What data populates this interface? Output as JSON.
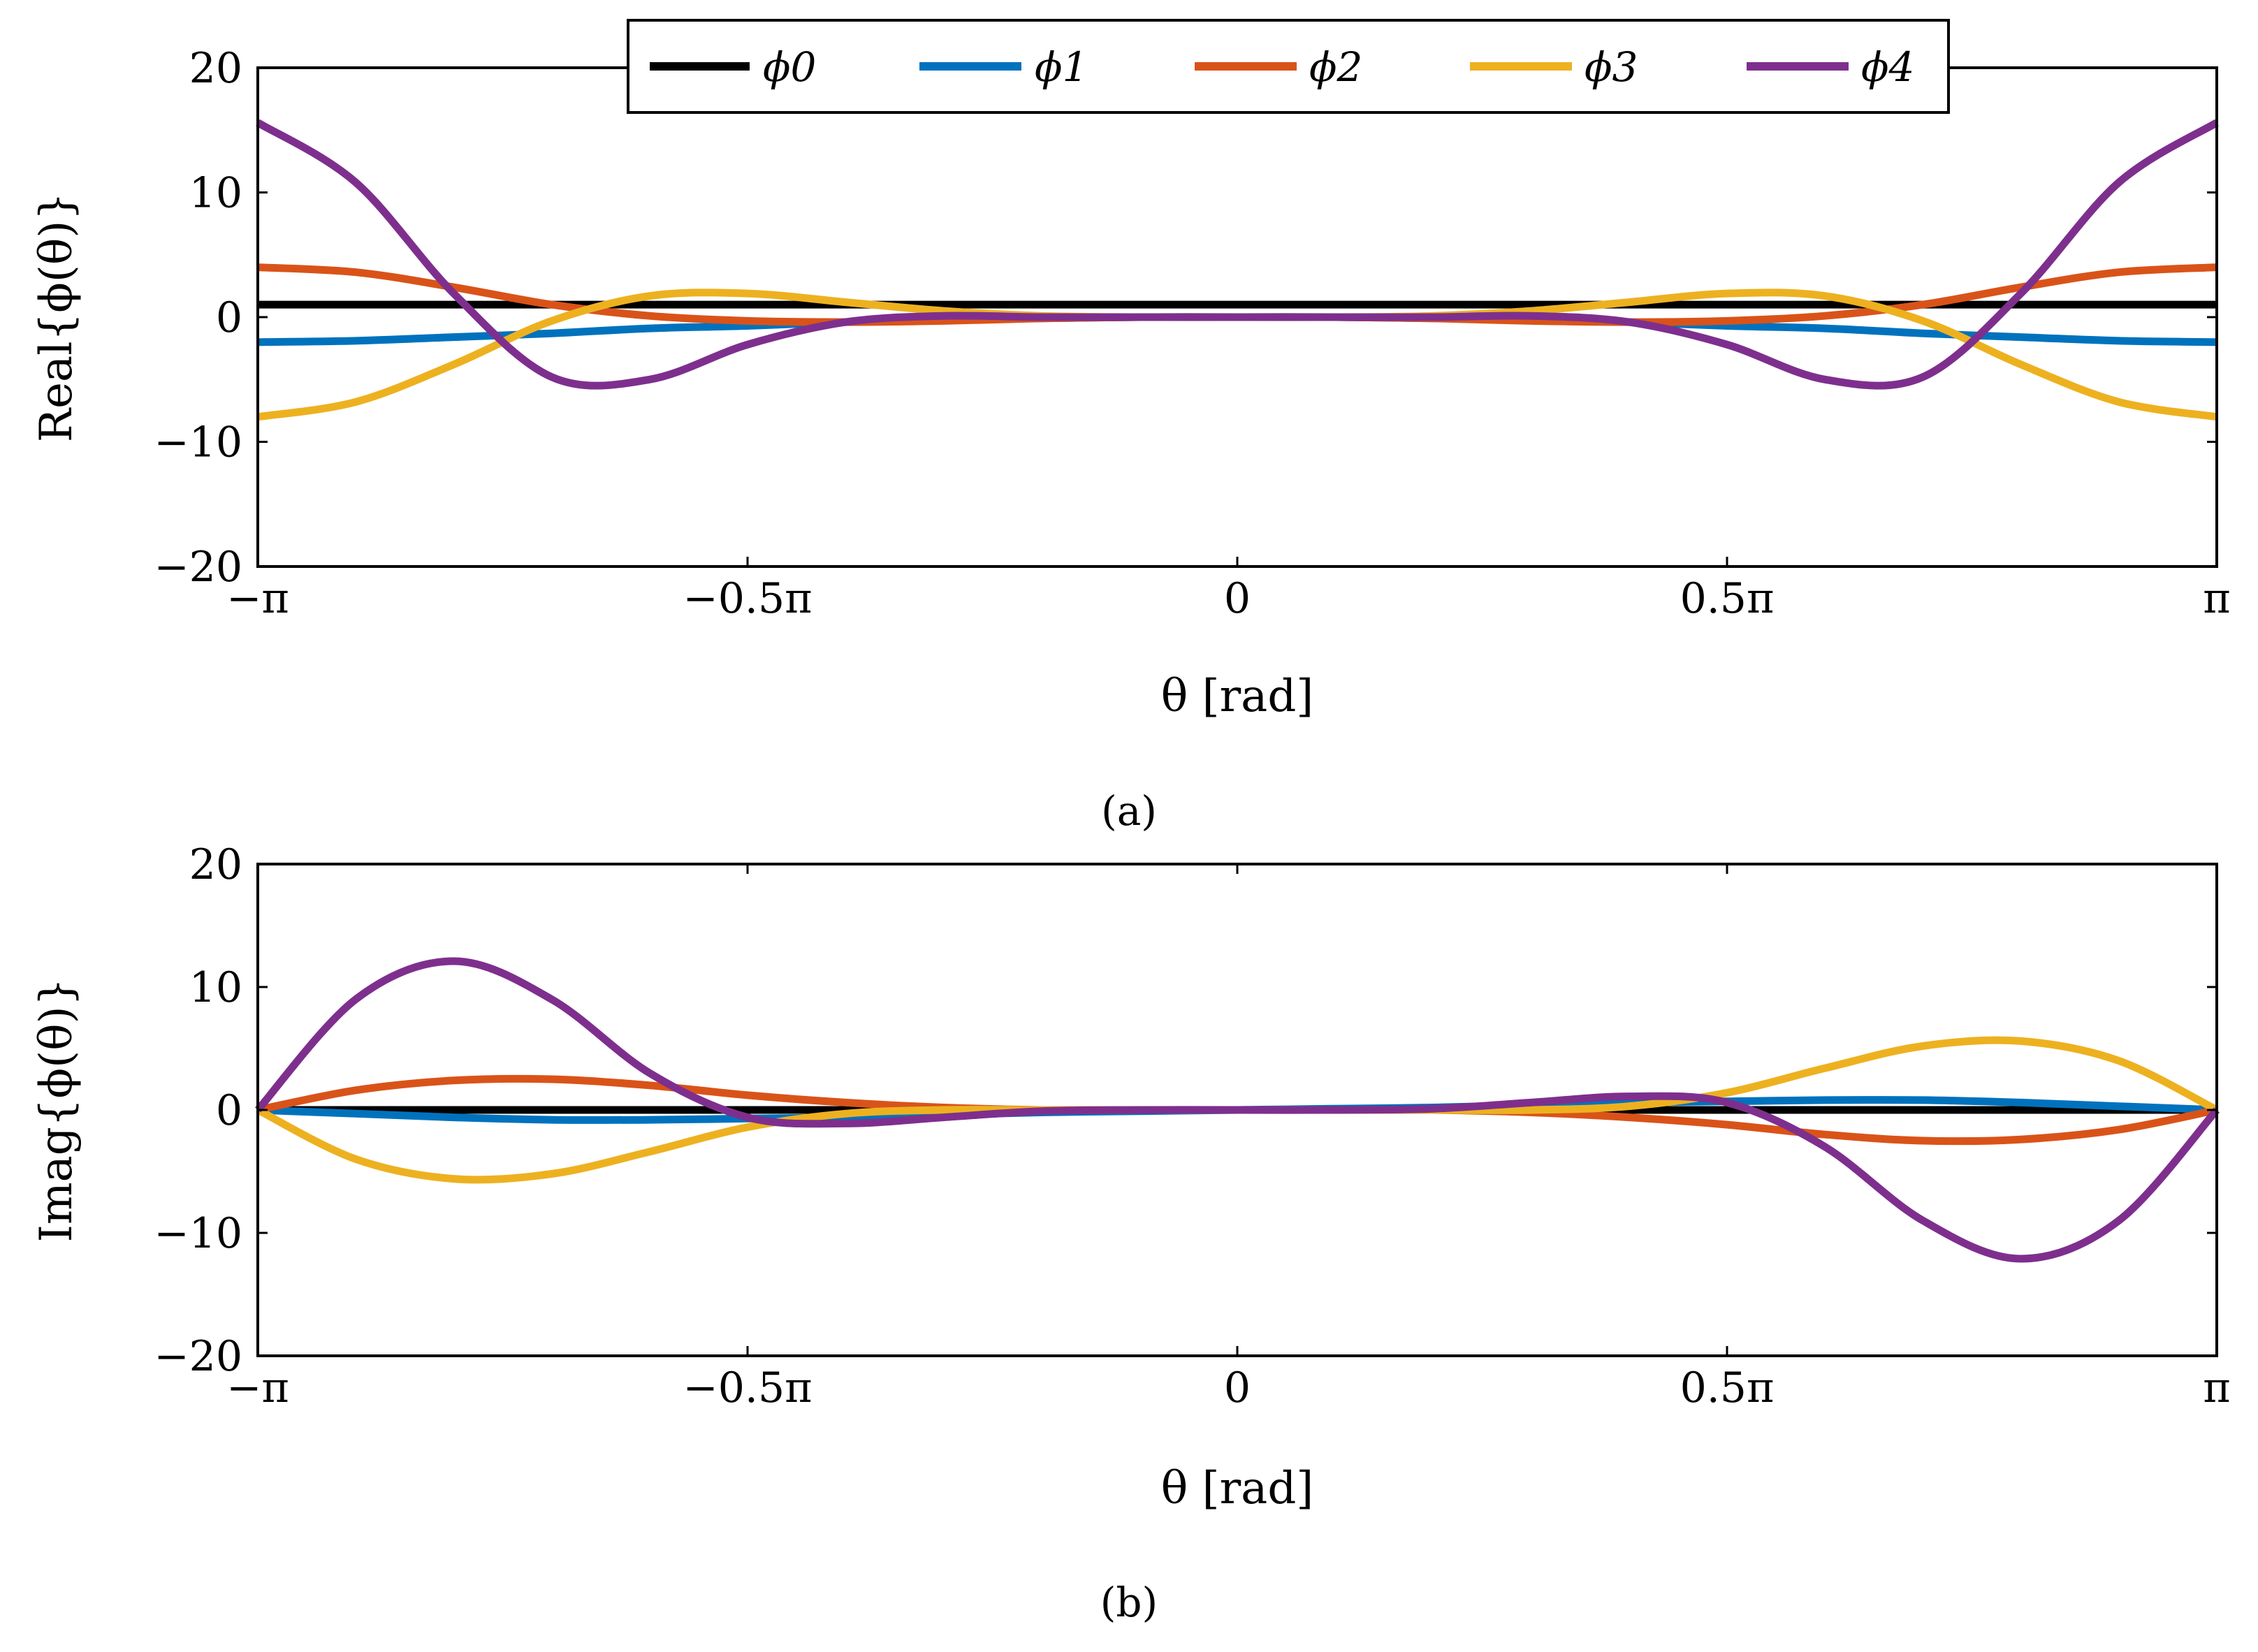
{
  "figure": {
    "captions": [
      "(a)",
      "(b)"
    ]
  },
  "colors": {
    "phi0": "#000000",
    "phi1": "#0072BD",
    "phi2": "#D95319",
    "phi3": "#EDB120",
    "phi4": "#7E2F8E",
    "axes": "#000000"
  },
  "chart_data": [
    {
      "type": "line",
      "panel": "a",
      "caption": "(a)",
      "xlabel": "θ [rad]",
      "ylabel": "Real{ϕ(θ)}",
      "xlim": [
        -3.14159,
        3.14159
      ],
      "ylim": [
        -20,
        20
      ],
      "grid": false,
      "x_ticks": [
        -3.14159,
        -1.5708,
        0,
        1.5708,
        3.14159
      ],
      "x_tick_labels": [
        "−π",
        "−0.5π",
        "0",
        "0.5π",
        "π"
      ],
      "y_ticks": [
        -20,
        -10,
        0,
        10,
        20
      ],
      "y_tick_labels": [
        "−20",
        "−10",
        "0",
        "10",
        "20"
      ],
      "legend": {
        "placement": "top-center",
        "entries": [
          "ϕ0",
          "ϕ1",
          "ϕ2",
          "ϕ3",
          "ϕ4"
        ]
      },
      "x": [
        -3.14159,
        -2.82743,
        -2.51327,
        -2.19911,
        -1.88496,
        -1.5708,
        -1.25664,
        -0.94248,
        -0.62832,
        -0.31416,
        0,
        0.31416,
        0.62832,
        0.94248,
        1.25664,
        1.5708,
        1.88496,
        2.19911,
        2.51327,
        2.82743,
        3.14159
      ],
      "series": [
        {
          "name": "ϕ0",
          "color": "#000000",
          "values": [
            1,
            1,
            1,
            1,
            1,
            1,
            1,
            1,
            1,
            1,
            1,
            1,
            1,
            1,
            1,
            1,
            1,
            1,
            1,
            1,
            1
          ]
        },
        {
          "name": "ϕ1",
          "color": "#0072BD",
          "values": [
            -2.0,
            -1.9,
            -1.6,
            -1.3,
            -0.9,
            -0.7,
            -0.4,
            -0.2,
            -0.1,
            0.0,
            0.0,
            0.0,
            -0.1,
            -0.2,
            -0.4,
            -0.7,
            -0.9,
            -1.3,
            -1.6,
            -1.9,
            -2.0
          ]
        },
        {
          "name": "ϕ2",
          "color": "#D95319",
          "values": [
            4.0,
            3.6,
            2.4,
            1.0,
            0.1,
            -0.3,
            -0.4,
            -0.3,
            -0.1,
            0.0,
            0.0,
            0.0,
            -0.1,
            -0.3,
            -0.4,
            -0.3,
            0.1,
            1.0,
            2.4,
            3.6,
            4.0
          ]
        },
        {
          "name": "ϕ3",
          "color": "#EDB120",
          "values": [
            -8.0,
            -6.8,
            -3.8,
            -0.3,
            1.7,
            1.9,
            1.2,
            0.5,
            0.1,
            0.0,
            0.0,
            0.0,
            0.1,
            0.5,
            1.2,
            1.9,
            1.7,
            -0.3,
            -3.8,
            -6.8,
            -8.0
          ]
        },
        {
          "name": "ϕ4",
          "color": "#7E2F8E",
          "values": [
            15.6,
            10.8,
            1.9,
            -4.8,
            -5.0,
            -2.2,
            -0.4,
            0.1,
            0.0,
            0.0,
            0.0,
            0.0,
            0.0,
            0.1,
            -0.4,
            -2.2,
            -5.0,
            -4.8,
            1.9,
            10.8,
            15.6
          ]
        }
      ]
    },
    {
      "type": "line",
      "panel": "b",
      "caption": "(b)",
      "xlabel": "θ [rad]",
      "ylabel": "Imag{ϕ(θ)}",
      "xlim": [
        -3.14159,
        3.14159
      ],
      "ylim": [
        -20,
        20
      ],
      "grid": false,
      "x_ticks": [
        -3.14159,
        -1.5708,
        0,
        1.5708,
        3.14159
      ],
      "x_tick_labels": [
        "−π",
        "−0.5π",
        "0",
        "0.5π",
        "π"
      ],
      "y_ticks": [
        -20,
        -10,
        0,
        10,
        20
      ],
      "y_tick_labels": [
        "−20",
        "−10",
        "0",
        "10",
        "20"
      ],
      "x": [
        -3.14159,
        -2.82743,
        -2.51327,
        -2.19911,
        -1.88496,
        -1.5708,
        -1.25664,
        -0.94248,
        -0.62832,
        -0.31416,
        0,
        0.31416,
        0.62832,
        0.94248,
        1.25664,
        1.5708,
        1.88496,
        2.19911,
        2.51327,
        2.82743,
        3.14159
      ],
      "series": [
        {
          "name": "ϕ0",
          "color": "#000000",
          "values": [
            0,
            0,
            0,
            0,
            0,
            0,
            0,
            0,
            0,
            0,
            0,
            0,
            0,
            0,
            0,
            0,
            0,
            0,
            0,
            0,
            0
          ]
        },
        {
          "name": "ϕ1",
          "color": "#0072BD",
          "values": [
            0.0,
            -0.3,
            -0.6,
            -0.8,
            -0.8,
            -0.7,
            -0.6,
            -0.4,
            -0.2,
            -0.1,
            0.0,
            0.1,
            0.2,
            0.4,
            0.6,
            0.7,
            0.8,
            0.8,
            0.6,
            0.3,
            0.0
          ]
        },
        {
          "name": "ϕ2",
          "color": "#D95319",
          "values": [
            0.0,
            1.6,
            2.4,
            2.5,
            2.0,
            1.2,
            0.6,
            0.2,
            0.0,
            0.0,
            0.0,
            0.0,
            0.0,
            -0.2,
            -0.6,
            -1.2,
            -2.0,
            -2.5,
            -2.4,
            -1.6,
            0.0
          ]
        },
        {
          "name": "ϕ3",
          "color": "#EDB120",
          "values": [
            0.0,
            -4.0,
            -5.6,
            -5.2,
            -3.4,
            -1.4,
            -0.3,
            0.0,
            0.0,
            0.0,
            0.0,
            0.0,
            0.0,
            0.0,
            0.3,
            1.4,
            3.4,
            5.2,
            5.6,
            4.0,
            0.0
          ]
        },
        {
          "name": "ϕ4",
          "color": "#7E2F8E",
          "values": [
            0.0,
            9.0,
            12.1,
            9.0,
            3.0,
            -0.6,
            -1.1,
            -0.6,
            -0.1,
            0.0,
            0.0,
            0.0,
            0.1,
            0.6,
            1.1,
            0.6,
            -3.0,
            -9.0,
            -12.1,
            -9.0,
            0.0
          ]
        }
      ]
    }
  ]
}
